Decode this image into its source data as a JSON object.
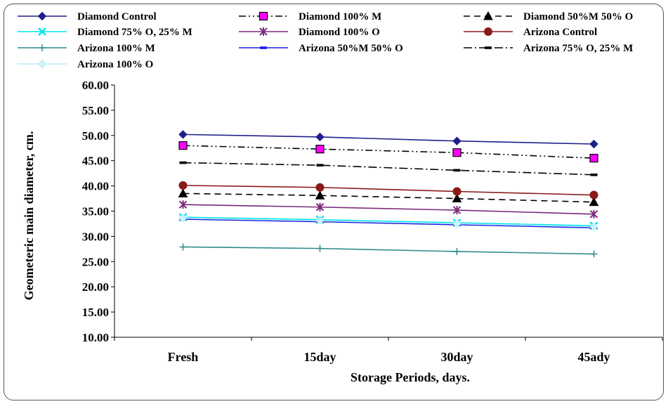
{
  "chart_data": {
    "type": "line",
    "title": "",
    "xlabel": "Storage Periods, days.",
    "ylabel": "Geometeric main diameter, cm.",
    "categories": [
      "Fresh",
      "15day",
      "30day",
      "45ady"
    ],
    "ylim": [
      10,
      60
    ],
    "yticks": [
      "10.00",
      "15.00",
      "20.00",
      "25.00",
      "30.00",
      "35.00",
      "40.00",
      "45.00",
      "50.00",
      "55.00",
      "60.00"
    ],
    "grid": false,
    "legend_position": "top",
    "series": [
      {
        "name": "Diamond Control",
        "values": [
          50.2,
          49.7,
          48.9,
          48.3
        ],
        "color": "#1f1f8a",
        "dash": "",
        "marker": "diamond",
        "marker_fill": "#1f1f8a"
      },
      {
        "name": "Diamond 100% M",
        "values": [
          48.0,
          47.3,
          46.6,
          45.5
        ],
        "color": "#000000",
        "dash": "10 4 2 4 2 4",
        "marker": "square",
        "marker_fill": "#ff00ff"
      },
      {
        "name": "Diamond 50%M 50% O",
        "values": [
          38.5,
          38.1,
          37.5,
          36.8
        ],
        "color": "#000000",
        "dash": "9 6",
        "marker": "triangle",
        "marker_fill": "#000000"
      },
      {
        "name": "Diamond 75% O, 25% M",
        "values": [
          33.8,
          33.3,
          32.7,
          32.1
        ],
        "color": "#00e5ee",
        "dash": "",
        "marker": "x",
        "marker_fill": "#00e5ee"
      },
      {
        "name": "Diamond 100% O",
        "values": [
          36.3,
          35.8,
          35.2,
          34.4
        ],
        "color": "#7b2a7b",
        "dash": "",
        "marker": "star",
        "marker_fill": "#7b2a7b"
      },
      {
        "name": "Arizona Control",
        "values": [
          40.1,
          39.7,
          38.9,
          38.2
        ],
        "color": "#8b1a1a",
        "dash": "",
        "marker": "circle",
        "marker_fill": "#8b1a1a"
      },
      {
        "name": "Arizona 100% M",
        "values": [
          27.9,
          27.6,
          27.0,
          26.5
        ],
        "color": "#2e8b8b",
        "dash": "",
        "marker": "plus",
        "marker_fill": "#2e8b8b"
      },
      {
        "name": "Arizona 50%M 50% O",
        "values": [
          33.4,
          32.9,
          32.3,
          31.7
        ],
        "color": "#1c1ce0",
        "dash": "",
        "marker": "dash",
        "marker_fill": "#1c1ce0"
      },
      {
        "name": "Arizona 75% O, 25% M",
        "values": [
          44.6,
          44.1,
          43.1,
          42.2
        ],
        "color": "#000000",
        "dash": "12 4 2 4",
        "marker": "dash",
        "marker_fill": "#000000"
      },
      {
        "name": "Arizona 100% O",
        "values": [
          33.6,
          33.1,
          32.5,
          31.9
        ],
        "color": "#b8ecf8",
        "dash": "",
        "marker": "diamond",
        "marker_fill": "#ccf3ff"
      }
    ]
  }
}
